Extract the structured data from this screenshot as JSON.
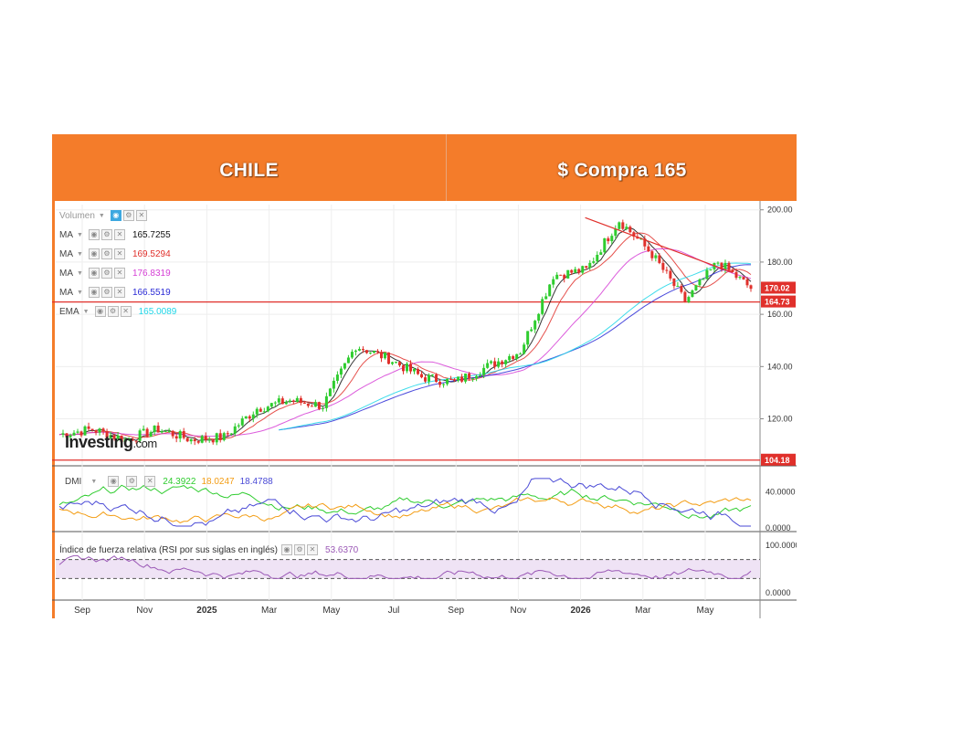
{
  "header": {
    "left_title": "CHILE",
    "right_title": "$ Compra 165"
  },
  "indicators": [
    {
      "name": "Volumen",
      "value": "",
      "color": "#999999"
    },
    {
      "name": "MA",
      "value": "165.7255",
      "color": "#111111"
    },
    {
      "name": "MA",
      "value": "169.5294",
      "color": "#e0302b"
    },
    {
      "name": "MA",
      "value": "176.8319",
      "color": "#d63fd6"
    },
    {
      "name": "MA",
      "value": "166.5519",
      "color": "#2b2bd6"
    },
    {
      "name": "EMA",
      "value": "165.0089",
      "color": "#1fd6e8"
    }
  ],
  "dmi": {
    "name": "DMI",
    "values": [
      "24.3922",
      "18.0247",
      "18.4788"
    ],
    "colors": [
      "#2ecc2e",
      "#f39c12",
      "#4a4ad6"
    ]
  },
  "rsi": {
    "name": "Índice de fuerza relativa (RSI por sus siglas en inglés)",
    "value": "53.6370",
    "color": "#9b59b6"
  },
  "logo": {
    "main": "Investing",
    "suffix": ".com"
  },
  "price_labels": [
    {
      "text": "170.02",
      "value": 170.02
    },
    {
      "text": "164.73",
      "value": 164.73
    },
    {
      "text": "104.18",
      "value": 104.18
    }
  ],
  "colors": {
    "header_bg": "#f47c2a",
    "support_line": "#e0302b",
    "up_candle": "#2ecc2e",
    "down_candle": "#e0302b"
  },
  "chart_data": {
    "type": "line",
    "title": "",
    "x_tick_labels": [
      "Sep",
      "Nov",
      "2025",
      "Mar",
      "May",
      "Jul",
      "Sep",
      "Nov",
      "2026",
      "Mar",
      "May"
    ],
    "price_axis": {
      "ticks": [
        "200.00",
        "180.00",
        "160.00",
        "140.00",
        "120.00"
      ],
      "ylim": [
        102,
        202
      ]
    },
    "dmi_axis": {
      "ticks": [
        "40.0000",
        "0.0000"
      ]
    },
    "rsi_axis": {
      "ticks": [
        "100.0000",
        "0.0000"
      ]
    },
    "horizontal_lines": [
      164.73,
      104.18
    ],
    "trendline": {
      "x": [
        "2026-01",
        "2026-05"
      ],
      "y": [
        197,
        176
      ]
    },
    "series": [
      {
        "x": [
          "2024-08",
          "2024-09",
          "2024-10",
          "2024-11",
          "2024-12",
          "2025-01",
          "2025-02",
          "2025-03",
          "2025-04",
          "2025-05",
          "2025-06",
          "2025-07",
          "2025-08",
          "2025-09",
          "2025-10",
          "2025-11",
          "2025-12",
          "2026-01",
          "2026-02",
          "2026-03",
          "2026-04",
          "2026-05"
        ],
        "values": [
          114,
          116,
          112,
          116,
          112,
          113,
          124,
          127,
          125,
          148,
          143,
          136,
          134,
          140,
          146,
          175,
          177,
          196,
          183,
          165,
          180,
          170
        ]
      }
    ]
  }
}
